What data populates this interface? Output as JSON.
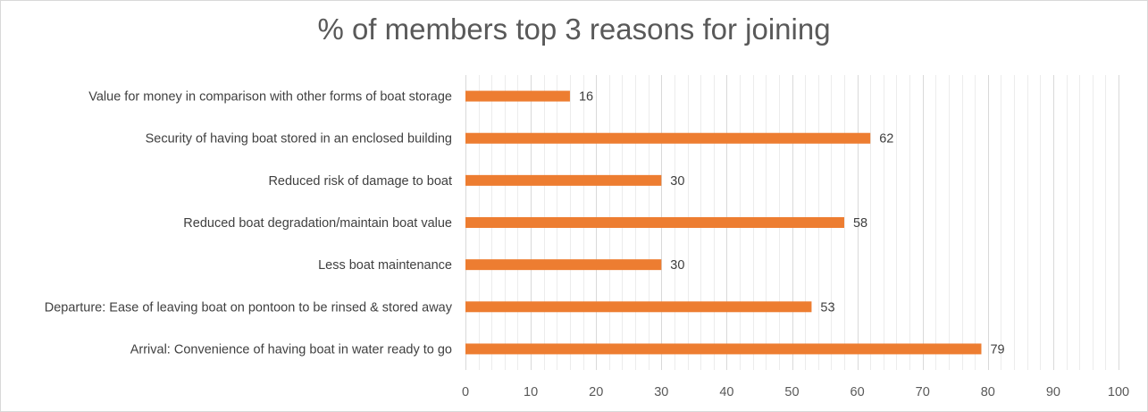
{
  "chart_data": {
    "type": "bar",
    "orientation": "horizontal",
    "title": "% of members top 3 reasons for joining",
    "categories": [
      "Value for money in comparison with other forms of boat storage",
      "Security of having boat stored in an enclosed building",
      "Reduced risk of damage to boat",
      "Reduced boat degradation/maintain boat value",
      "Less boat maintenance",
      "Departure: Ease of leaving boat on pontoon to be rinsed & stored away",
      "Arrival: Convenience of having boat in water ready to go"
    ],
    "values": [
      16,
      62,
      30,
      58,
      30,
      53,
      79
    ],
    "xlim": [
      0,
      100
    ],
    "xticks": [
      0,
      10,
      20,
      30,
      40,
      50,
      60,
      70,
      80,
      90,
      100
    ],
    "grid": true,
    "bar_color": "#ED7D31",
    "gridline_color": "#d9d9d9",
    "data_labels": true,
    "legend": "none"
  }
}
